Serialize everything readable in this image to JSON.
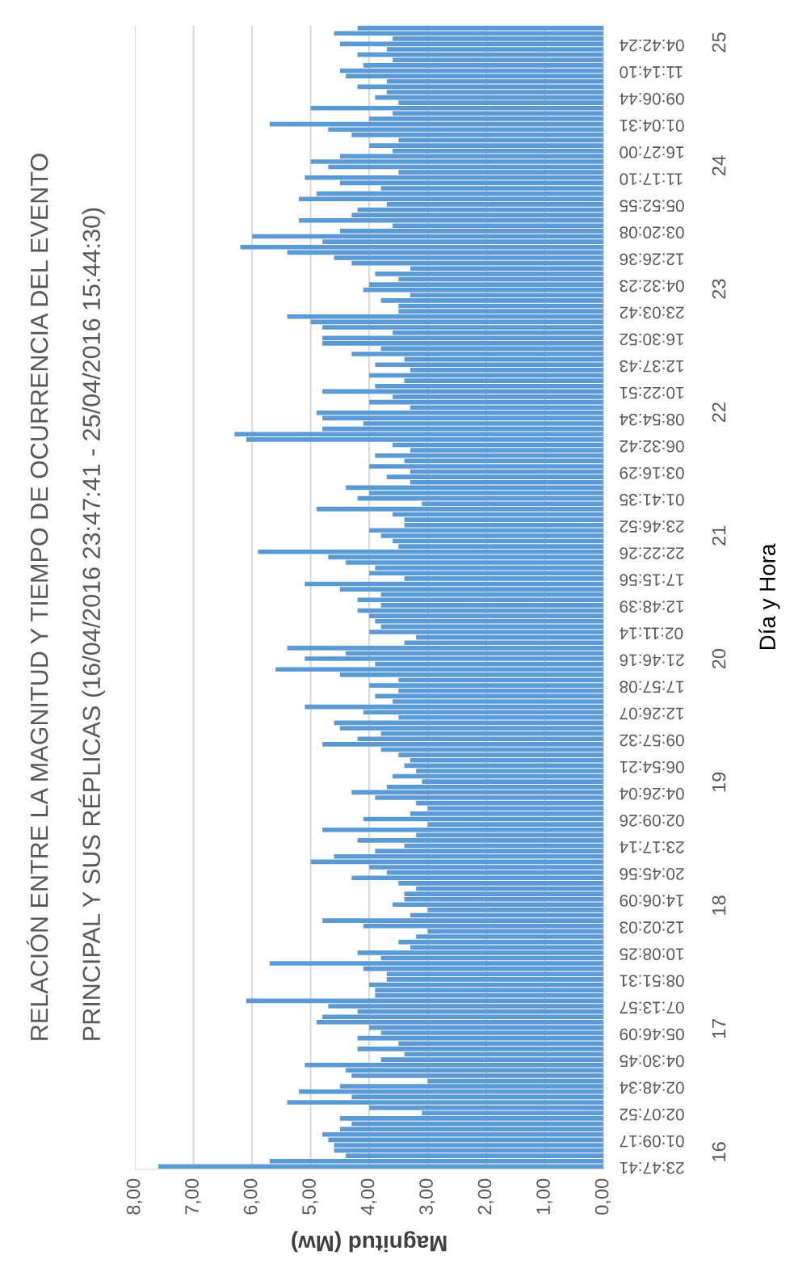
{
  "chart_data": {
    "type": "bar",
    "orientation": "horizontal",
    "title": "RELACIÓN ENTRE LA MAGNITUD Y TIEMPO DE OCURRENCIA DEL EVENTO\nPRINCIPAL Y SUS RÉPLICAS (16/04/2016 23:47:41 - 25/04/2016 15:44:30)",
    "xlabel": "Magnitud (Mw)",
    "ylabel": "Día y Hora",
    "categories": [
      null,
      null,
      null,
      "04:42:24",
      null,
      null,
      null,
      null,
      "11:14:10",
      null,
      null,
      null,
      null,
      "09:06:44",
      null,
      null,
      null,
      null,
      "01:04:31",
      null,
      null,
      null,
      null,
      "16:27:00",
      null,
      null,
      null,
      null,
      "11:17:10",
      null,
      null,
      null,
      null,
      "05:52:55",
      null,
      null,
      null,
      null,
      "03:20:08",
      null,
      null,
      null,
      null,
      "12:26:36",
      null,
      null,
      null,
      null,
      "04:32:23",
      null,
      null,
      null,
      null,
      "23:03:42",
      null,
      null,
      null,
      null,
      "16:30:52",
      null,
      null,
      null,
      null,
      "12:37:43",
      null,
      null,
      null,
      null,
      "10:22:51",
      null,
      null,
      null,
      null,
      "08:54:34",
      null,
      null,
      null,
      null,
      "06:32:42",
      null,
      null,
      null,
      null,
      "03:16:29",
      null,
      null,
      null,
      null,
      "01:41:35",
      null,
      null,
      null,
      null,
      "23:46:52",
      null,
      null,
      null,
      null,
      "22:22:26",
      null,
      null,
      null,
      null,
      "17:15:56",
      null,
      null,
      null,
      null,
      "12:48:39",
      null,
      null,
      null,
      null,
      "02:11:14",
      null,
      null,
      null,
      null,
      "21:46:16",
      null,
      null,
      null,
      null,
      "17:57:08",
      null,
      null,
      null,
      null,
      "12:26:07",
      null,
      null,
      null,
      null,
      "09:57:32",
      null,
      null,
      null,
      null,
      "06:54:21",
      null,
      null,
      null,
      null,
      "04:26:04",
      null,
      null,
      null,
      null,
      "02:09:26",
      null,
      null,
      null,
      null,
      "23:17:14",
      null,
      null,
      null,
      null,
      "20:45:56",
      null,
      null,
      null,
      null,
      "14:06:09",
      null,
      null,
      null,
      null,
      "12:02:03",
      null,
      null,
      null,
      null,
      "10:08:25",
      null,
      null,
      null,
      null,
      "08:51:31",
      null,
      null,
      null,
      null,
      "07:13:57",
      null,
      null,
      null,
      null,
      "05:46:09",
      null,
      null,
      null,
      null,
      "04:30:45",
      null,
      null,
      null,
      null,
      "02:48:34",
      null,
      null,
      null,
      null,
      "02:07:52",
      null,
      null,
      null,
      null,
      "01:09:17",
      null,
      null,
      null,
      null,
      "23:47:41"
    ],
    "values": [
      4.2,
      4.6,
      3.6,
      4.5,
      3.7,
      4.2,
      3.6,
      4.1,
      4.5,
      4.4,
      3.7,
      4.2,
      3.7,
      3.9,
      3.5,
      5.0,
      3.6,
      4.0,
      5.7,
      4.7,
      4.3,
      3.5,
      4.0,
      3.6,
      4.5,
      5.0,
      4.7,
      3.5,
      5.1,
      4.5,
      3.8,
      4.9,
      5.2,
      3.7,
      4.2,
      4.3,
      5.2,
      3.6,
      4.5,
      6.0,
      4.8,
      6.2,
      5.4,
      4.6,
      4.3,
      3.3,
      3.9,
      3.5,
      4.0,
      4.1,
      3.3,
      3.8,
      3.5,
      3.5,
      5.4,
      5.0,
      4.8,
      3.6,
      4.8,
      4.8,
      3.8,
      4.3,
      3.4,
      3.9,
      3.3,
      4.0,
      3.4,
      3.9,
      4.8,
      3.6,
      4.0,
      3.3,
      4.9,
      4.8,
      4.1,
      4.8,
      6.3,
      6.1,
      3.6,
      3.3,
      3.9,
      3.4,
      4.0,
      3.3,
      3.7,
      3.3,
      4.4,
      4.0,
      4.2,
      3.1,
      4.9,
      3.6,
      3.4,
      3.4,
      4.0,
      3.8,
      3.6,
      3.5,
      5.9,
      4.7,
      4.4,
      3.9,
      4.0,
      3.4,
      5.1,
      4.5,
      3.8,
      4.2,
      3.8,
      4.2,
      4.0,
      3.9,
      3.8,
      4.0,
      3.2,
      3.4,
      5.4,
      4.4,
      5.1,
      3.9,
      5.6,
      4.5,
      3.5,
      4.0,
      3.5,
      3.9,
      3.6,
      5.1,
      4.1,
      3.5,
      4.6,
      4.5,
      3.8,
      4.2,
      4.8,
      3.8,
      3.5,
      3.3,
      3.4,
      3.2,
      3.6,
      3.1,
      3.7,
      4.3,
      3.9,
      3.2,
      3.0,
      3.3,
      4.1,
      3.0,
      4.8,
      3.2,
      4.2,
      3.4,
      3.9,
      4.6,
      5.0,
      4.0,
      3.7,
      4.3,
      3.5,
      3.2,
      3.4,
      3.4,
      3.6,
      3.0,
      3.3,
      4.8,
      4.1,
      3.0,
      3.2,
      3.5,
      3.3,
      4.2,
      3.8,
      5.7,
      4.1,
      3.7,
      3.7,
      4.0,
      3.9,
      3.9,
      6.1,
      4.7,
      4.2,
      4.8,
      4.9,
      4.0,
      3.8,
      4.2,
      3.5,
      4.2,
      3.4,
      3.8,
      5.1,
      4.4,
      4.3,
      3.0,
      4.5,
      5.2,
      4.3,
      5.4,
      4.0,
      3.1,
      4.5,
      4.3,
      4.5,
      4.8,
      4.7,
      4.6,
      4.6,
      4.4,
      5.7,
      7.6
    ],
    "color": "#5b9bd5",
    "xlim": [
      8,
      0
    ],
    "xticks": [
      {
        "value": 8,
        "label": "8,00"
      },
      {
        "value": 7,
        "label": "7,00"
      },
      {
        "value": 6,
        "label": "6,00"
      },
      {
        "value": 5,
        "label": "5,00"
      },
      {
        "value": 4,
        "label": "4,00"
      },
      {
        "value": 3,
        "label": "3,00"
      },
      {
        "value": 2,
        "label": "2,00"
      },
      {
        "value": 1,
        "label": "1,00"
      },
      {
        "value": 0,
        "label": "0,00"
      }
    ],
    "grid": "x",
    "annotations": [
      "25",
      "24",
      "23",
      "22",
      "21",
      "20",
      "19",
      "18",
      "17",
      "16"
    ]
  }
}
